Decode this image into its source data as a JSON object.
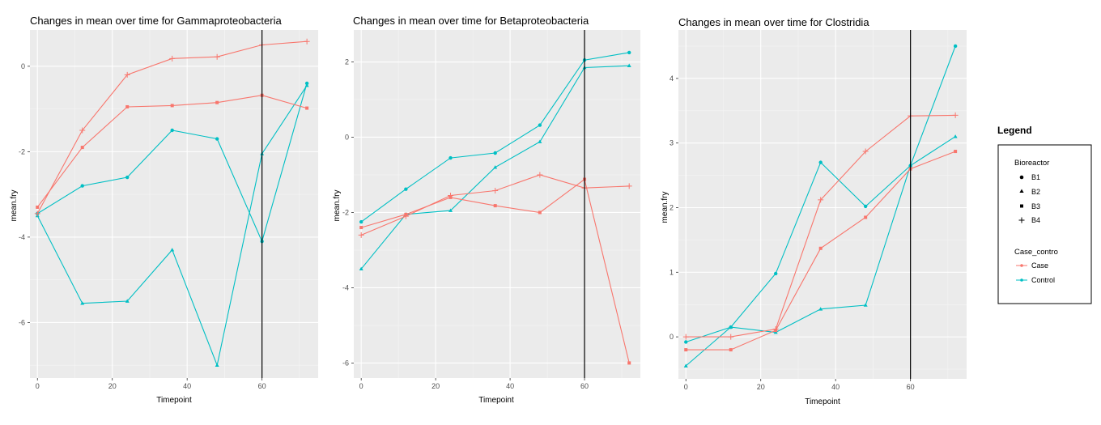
{
  "colors": {
    "case": "#F8766D",
    "control": "#00BFC4"
  },
  "legend": {
    "title": "Legend",
    "shape_title": "Bioreactor",
    "shapes": [
      "B1",
      "B2",
      "B3",
      "B4"
    ],
    "color_title": "Case_contro",
    "groups": [
      "Case",
      "Control"
    ]
  },
  "chart_data": [
    {
      "type": "line",
      "title": "Changes in mean over time for  Gammaproteobacteria",
      "xlabel": "Timepoint",
      "ylabel": "mean.fry",
      "xlim": [
        -2,
        75
      ],
      "ylim": [
        -7.3,
        0.85
      ],
      "xticks": [
        0,
        20,
        40,
        60
      ],
      "yticks": [
        0,
        -2,
        -4,
        -6
      ],
      "vline": 60,
      "grid": true,
      "series": [
        {
          "bioreactor": "B1",
          "group": "Control",
          "x": [
            0,
            12,
            24,
            36,
            48,
            60,
            72
          ],
          "y": [
            -3.45,
            -2.8,
            -2.6,
            -1.5,
            -1.7,
            -4.1,
            -0.4
          ]
        },
        {
          "bioreactor": "B2",
          "group": "Control",
          "x": [
            0,
            12,
            24,
            36,
            48,
            60,
            72
          ],
          "y": [
            -3.5,
            -5.55,
            -5.5,
            -4.3,
            -7.0,
            -2.05,
            -0.45
          ]
        },
        {
          "bioreactor": "B3",
          "group": "Case",
          "x": [
            0,
            12,
            24,
            36,
            48,
            60,
            72
          ],
          "y": [
            -3.3,
            -1.9,
            -0.95,
            -0.92,
            -0.85,
            -0.68,
            -0.98
          ]
        },
        {
          "bioreactor": "B4",
          "group": "Case",
          "x": [
            0,
            12,
            24,
            36,
            48,
            60,
            72
          ],
          "y": [
            -3.45,
            -1.5,
            -0.2,
            0.18,
            0.22,
            0.5,
            0.58
          ]
        }
      ]
    },
    {
      "type": "line",
      "title": "Changes in mean over time for  Betaproteobacteria",
      "xlabel": "Timepoint",
      "ylabel": "mean.fry",
      "xlim": [
        -2,
        75
      ],
      "ylim": [
        -6.4,
        2.85
      ],
      "xticks": [
        0,
        20,
        40,
        60
      ],
      "yticks": [
        2,
        0,
        -2,
        -4,
        -6
      ],
      "vline": 60,
      "grid": true,
      "series": [
        {
          "bioreactor": "B1",
          "group": "Control",
          "x": [
            0,
            12,
            24,
            36,
            48,
            60,
            72
          ],
          "y": [
            -2.25,
            -1.38,
            -0.55,
            -0.42,
            0.32,
            2.05,
            2.25
          ]
        },
        {
          "bioreactor": "B2",
          "group": "Control",
          "x": [
            0,
            12,
            24,
            36,
            48,
            60,
            72
          ],
          "y": [
            -3.5,
            -2.05,
            -1.95,
            -0.8,
            -0.12,
            1.85,
            1.9
          ]
        },
        {
          "bioreactor": "B3",
          "group": "Case",
          "x": [
            0,
            12,
            24,
            36,
            48,
            60,
            72
          ],
          "y": [
            -2.4,
            -2.05,
            -1.6,
            -1.82,
            -2.0,
            -1.12,
            -6.0
          ]
        },
        {
          "bioreactor": "B4",
          "group": "Case",
          "x": [
            0,
            12,
            24,
            36,
            48,
            60,
            72
          ],
          "y": [
            -2.6,
            -2.1,
            -1.55,
            -1.42,
            -1.0,
            -1.35,
            -1.3
          ]
        }
      ]
    },
    {
      "type": "line",
      "title": "Changes in mean over time for  Clostridia",
      "xlabel": "Timepoint",
      "ylabel": "mean.fry",
      "xlim": [
        -2,
        75
      ],
      "ylim": [
        -0.65,
        4.75
      ],
      "xticks": [
        0,
        20,
        40,
        60
      ],
      "yticks": [
        4,
        3,
        2,
        1,
        0
      ],
      "vline": 60,
      "grid": true,
      "series": [
        {
          "bioreactor": "B1",
          "group": "Control",
          "x": [
            0,
            12,
            24,
            36,
            48,
            60,
            72
          ],
          "y": [
            -0.08,
            0.15,
            0.98,
            2.7,
            2.02,
            2.65,
            4.5
          ]
        },
        {
          "bioreactor": "B2",
          "group": "Control",
          "x": [
            0,
            12,
            24,
            36,
            48,
            60,
            72
          ],
          "y": [
            -0.45,
            0.15,
            0.07,
            0.43,
            0.49,
            2.65,
            3.1
          ]
        },
        {
          "bioreactor": "B3",
          "group": "Case",
          "x": [
            0,
            12,
            24,
            36,
            48,
            60,
            72
          ],
          "y": [
            -0.2,
            -0.2,
            0.1,
            1.37,
            1.85,
            2.6,
            2.87
          ]
        },
        {
          "bioreactor": "B4",
          "group": "Case",
          "x": [
            0,
            12,
            24,
            36,
            48,
            60,
            72
          ],
          "y": [
            0.0,
            0.0,
            0.12,
            2.12,
            2.87,
            3.42,
            3.43
          ]
        }
      ]
    }
  ]
}
